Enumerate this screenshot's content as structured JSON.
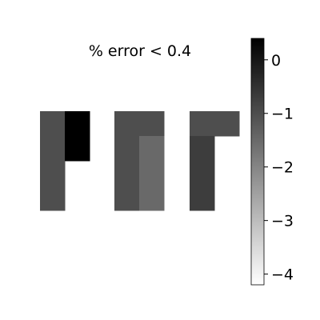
{
  "chart_data": {
    "type": "heatmap",
    "title": "% error < 0.4",
    "colormap": "gray_r",
    "color_range": [
      -4.2,
      0.4
    ],
    "colorbar_ticks": [
      {
        "value": 0,
        "label": "0"
      },
      {
        "value": -1,
        "label": "−1"
      },
      {
        "value": -2,
        "label": "−2"
      },
      {
        "value": -3,
        "label": "−3"
      },
      {
        "value": -4,
        "label": "−4"
      }
    ],
    "panels": [
      {
        "name": "panel-1",
        "cells": [
          {
            "row": 0,
            "col": 0,
            "value": -1.0
          },
          {
            "row": 0,
            "col": 1,
            "value": 0.4
          },
          {
            "row": 1,
            "col": 0,
            "value": -1.0
          },
          {
            "row": 1,
            "col": 1,
            "value": 0.4
          },
          {
            "row": 2,
            "col": 0,
            "value": -1.0
          },
          {
            "row": 3,
            "col": 0,
            "value": -1.0
          }
        ]
      },
      {
        "name": "panel-2",
        "cells": [
          {
            "row": 0,
            "col": 0,
            "value": -1.0
          },
          {
            "row": 0,
            "col": 1,
            "value": -1.0
          },
          {
            "row": 1,
            "col": 0,
            "value": -1.0
          },
          {
            "row": 1,
            "col": 1,
            "value": -1.5
          },
          {
            "row": 2,
            "col": 0,
            "value": -1.0
          },
          {
            "row": 2,
            "col": 1,
            "value": -1.5
          },
          {
            "row": 3,
            "col": 0,
            "value": -1.0
          },
          {
            "row": 3,
            "col": 1,
            "value": -1.5
          }
        ]
      },
      {
        "name": "panel-3",
        "cells": [
          {
            "row": 0,
            "col": 0,
            "value": -1.0
          },
          {
            "row": 0,
            "col": 1,
            "value": -1.0
          },
          {
            "row": 1,
            "col": 0,
            "value": -0.7
          },
          {
            "row": 2,
            "col": 0,
            "value": -0.7
          },
          {
            "row": 3,
            "col": 0,
            "value": -0.7
          }
        ]
      }
    ]
  }
}
